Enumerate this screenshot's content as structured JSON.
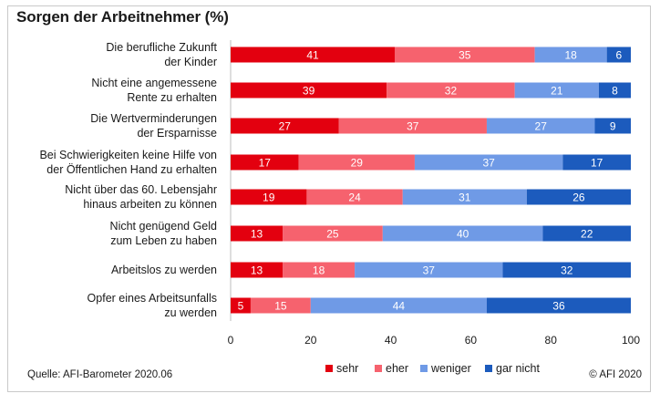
{
  "chart_data": {
    "type": "bar",
    "orientation": "horizontal",
    "stacked": true,
    "title": "Sorgen der Arbeitnehmer (%)",
    "categories": [
      [
        "Die berufliche Zukunft",
        "der Kinder"
      ],
      [
        "Nicht eine angemessene",
        "Rente zu erhalten"
      ],
      [
        "Die Wertverminderungen",
        "der Ersparnisse"
      ],
      [
        "Bei Schwierigkeiten keine Hilfe von",
        "der Öffentlichen Hand zu erhalten"
      ],
      [
        "Nicht über das 60. Lebensjahr",
        "hinaus arbeiten zu können"
      ],
      [
        "Nicht genügend Geld",
        "zum Leben zu haben"
      ],
      [
        "Arbeitslos zu werden"
      ],
      [
        "Opfer eines Arbeitsunfalls",
        "zu werden"
      ]
    ],
    "series": [
      {
        "name": "sehr",
        "color": "#e3000f",
        "values": [
          41,
          39,
          27,
          17,
          19,
          13,
          13,
          5
        ]
      },
      {
        "name": "eher",
        "color": "#f6626e",
        "values": [
          35,
          32,
          37,
          29,
          24,
          25,
          18,
          15
        ]
      },
      {
        "name": "weniger",
        "color": "#6f9ae6",
        "values": [
          18,
          21,
          27,
          37,
          31,
          40,
          37,
          44
        ]
      },
      {
        "name": "gar nicht",
        "color": "#1c5bbd",
        "values": [
          6,
          8,
          9,
          17,
          26,
          22,
          32,
          36
        ]
      }
    ],
    "xlim": [
      0,
      100
    ],
    "xticks": [
      0,
      20,
      40,
      60,
      80,
      100
    ],
    "grid": false,
    "legend": "bottom"
  },
  "footer": {
    "source": "Quelle: AFI-Barometer 2020.06",
    "copyright": "© AFI 2020"
  }
}
